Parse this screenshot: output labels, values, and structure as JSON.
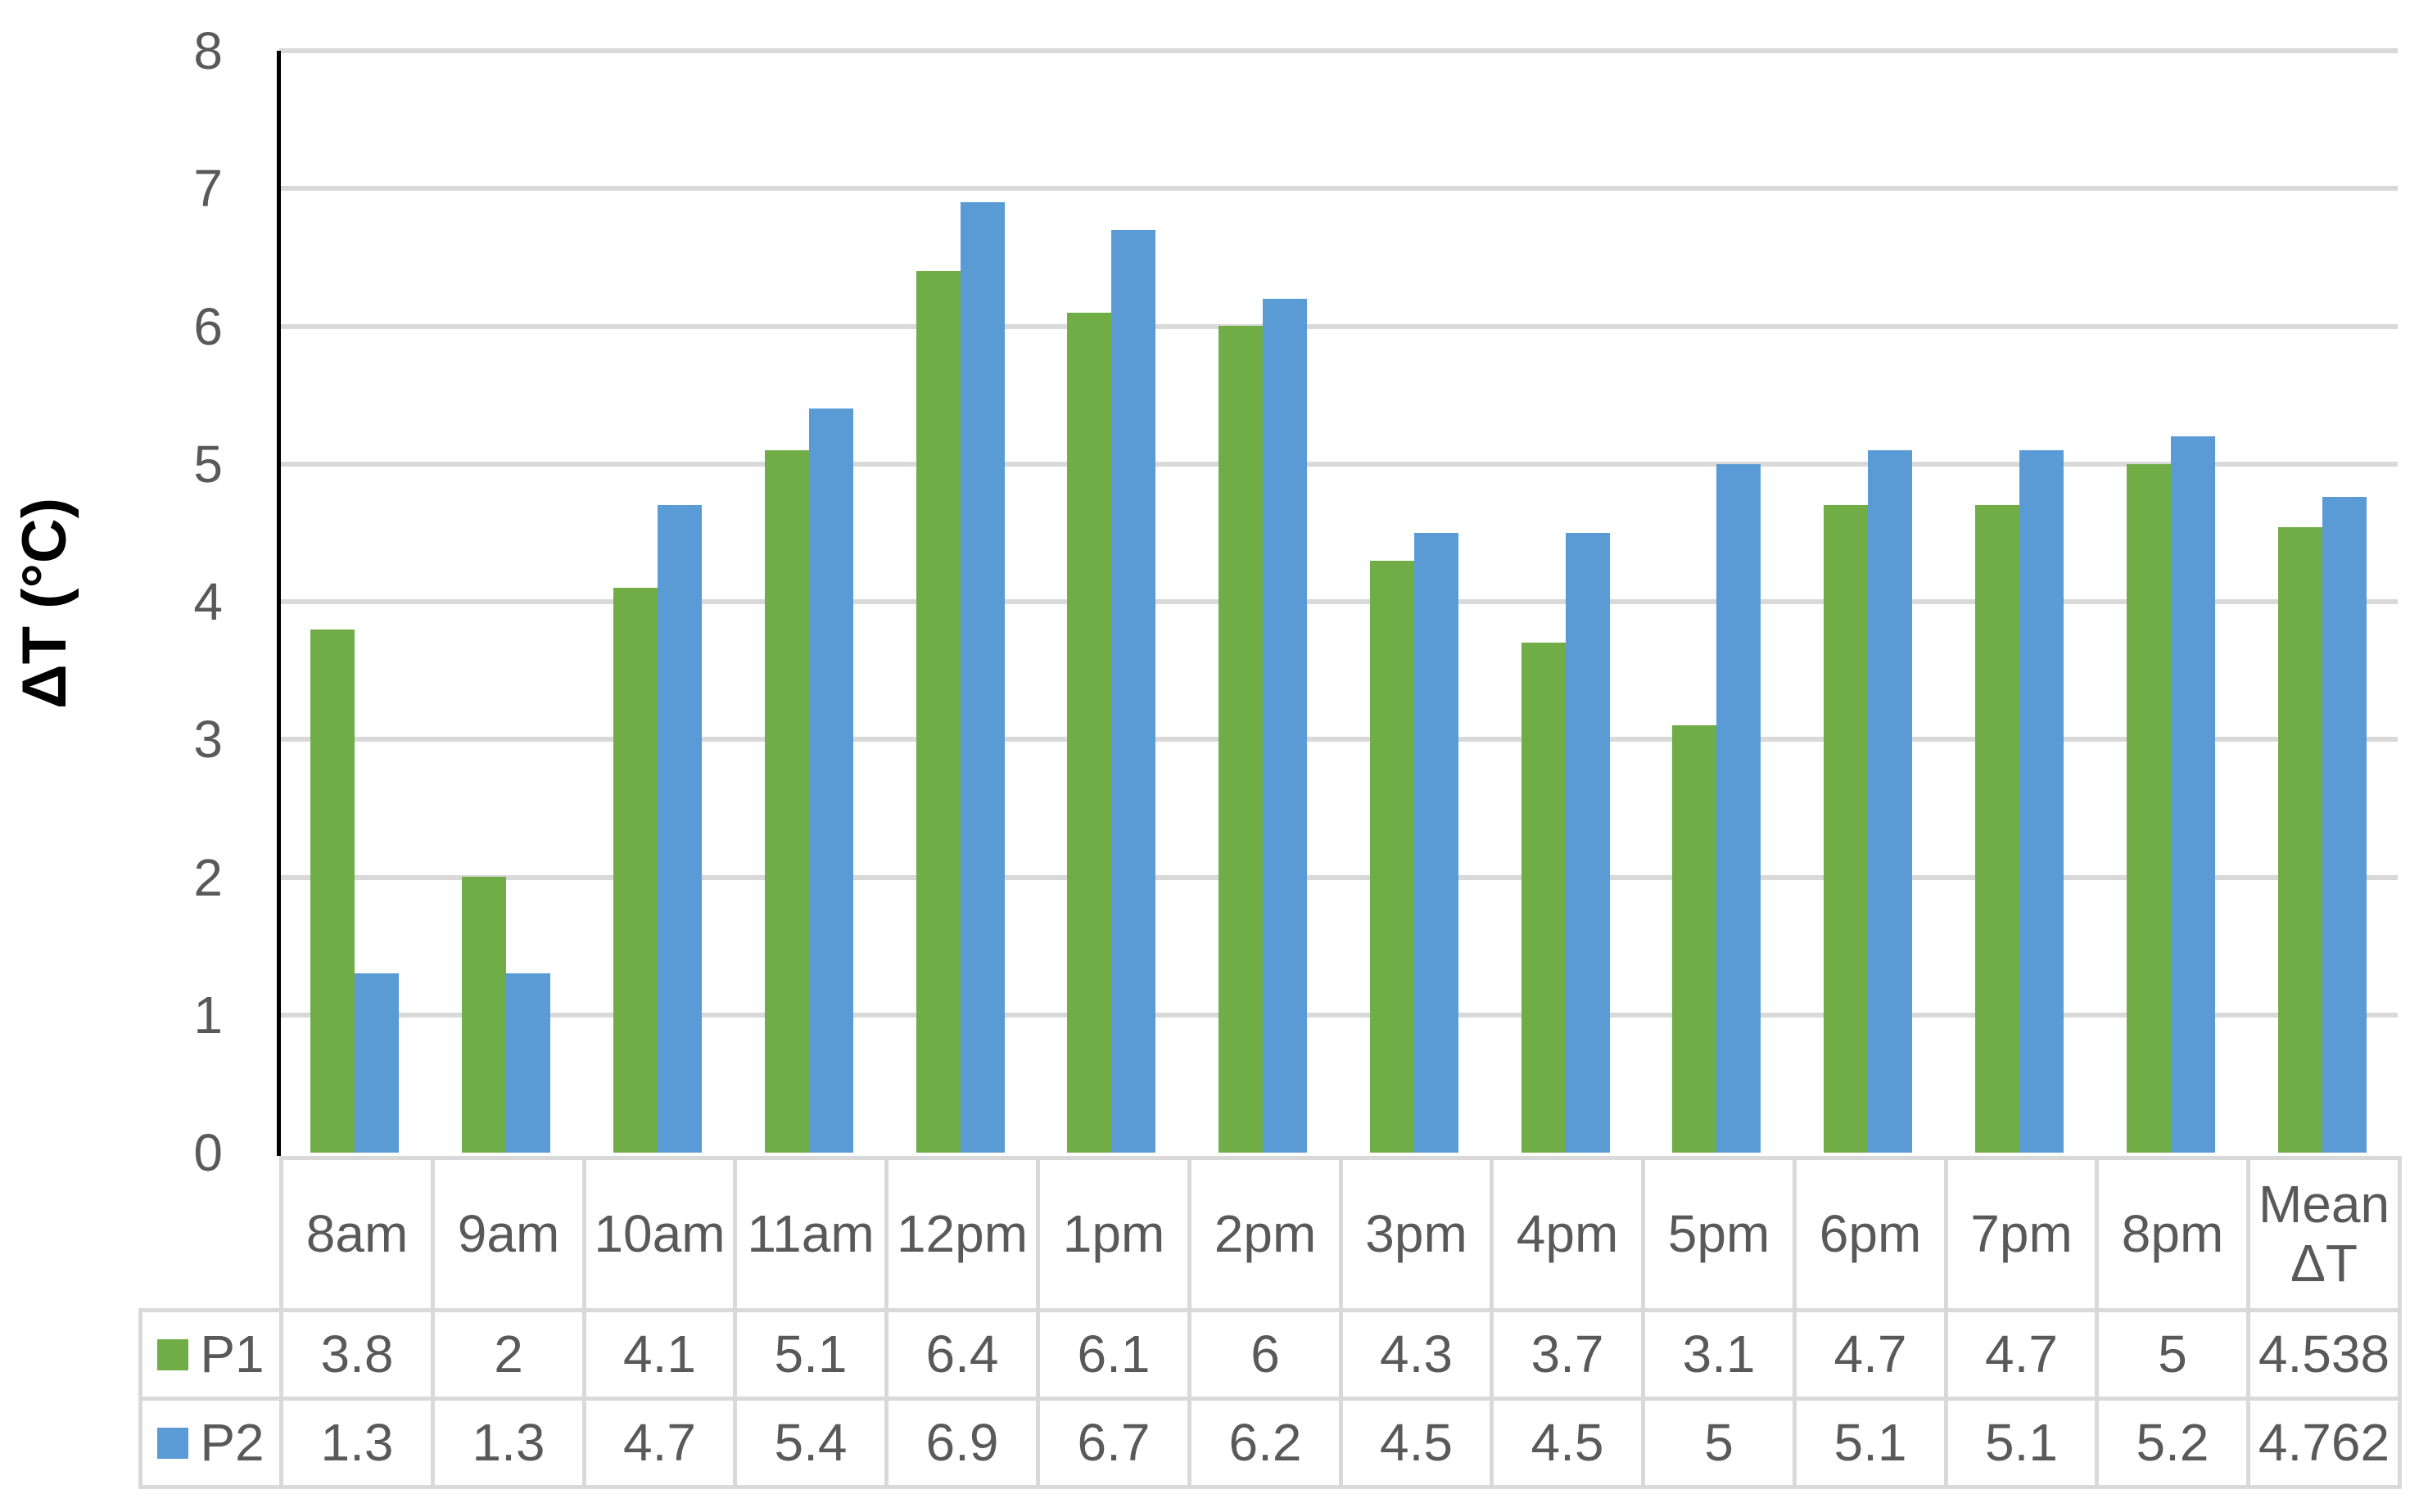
{
  "chart_data": {
    "type": "bar",
    "title": "",
    "xlabel": "",
    "ylabel": "ΔT (°C)",
    "ylim": [
      0,
      8
    ],
    "ytick_step": 1,
    "yticks": [
      0,
      1,
      2,
      3,
      4,
      5,
      6,
      7,
      8
    ],
    "grid": true,
    "legend_position": "data-table-left-column",
    "data_table_shown": true,
    "categories": [
      "8am",
      "9am",
      "10am",
      "11am",
      "12pm",
      "1pm",
      "2pm",
      "3pm",
      "4pm",
      "5pm",
      "6pm",
      "7pm",
      "8pm",
      "Mean ΔT"
    ],
    "series": [
      {
        "name": "P1",
        "color": "#70AD47",
        "values": [
          3.8,
          2,
          4.1,
          5.1,
          6.4,
          6.1,
          6,
          4.3,
          3.7,
          3.1,
          4.7,
          4.7,
          5,
          4.538
        ]
      },
      {
        "name": "P2",
        "color": "#5B9BD5",
        "values": [
          1.3,
          1.3,
          4.7,
          5.4,
          6.9,
          6.7,
          6.2,
          4.5,
          4.5,
          5,
          5.1,
          5.1,
          5.2,
          4.762
        ]
      }
    ],
    "colors": {
      "axis_line": "#000000",
      "gridline": "#D9D9D9",
      "table_border": "#D9D9D9",
      "tick_text": "#595959",
      "table_text": "#595959",
      "axis_title_text": "#000000",
      "background": "#FFFFFF"
    }
  }
}
